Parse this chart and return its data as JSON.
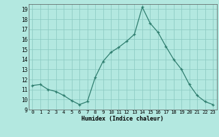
{
  "x": [
    0,
    1,
    2,
    3,
    4,
    5,
    6,
    7,
    8,
    9,
    10,
    11,
    12,
    13,
    14,
    15,
    16,
    17,
    18,
    19,
    20,
    21,
    22,
    23
  ],
  "y": [
    11.4,
    11.5,
    11.0,
    10.8,
    10.4,
    9.9,
    9.5,
    9.8,
    12.2,
    13.8,
    14.7,
    15.2,
    15.8,
    16.5,
    19.2,
    17.6,
    16.7,
    15.3,
    14.0,
    13.0,
    11.5,
    10.4,
    9.8,
    9.5
  ],
  "line_color": "#2e7d6e",
  "marker": "+",
  "bg_color": "#b3e8e0",
  "grid_color": "#8eccc4",
  "xlabel": "Humidex (Indice chaleur)",
  "ylim_min": 9,
  "ylim_max": 19.5,
  "xlim_min": -0.5,
  "xlim_max": 23.5,
  "yticks": [
    9,
    10,
    11,
    12,
    13,
    14,
    15,
    16,
    17,
    18,
    19
  ],
  "xtick_labels": [
    "0",
    "1",
    "2",
    "3",
    "4",
    "5",
    "6",
    "7",
    "8",
    "9",
    "10",
    "11",
    "12",
    "13",
    "14",
    "15",
    "16",
    "17",
    "18",
    "19",
    "20",
    "21",
    "22",
    "23"
  ]
}
